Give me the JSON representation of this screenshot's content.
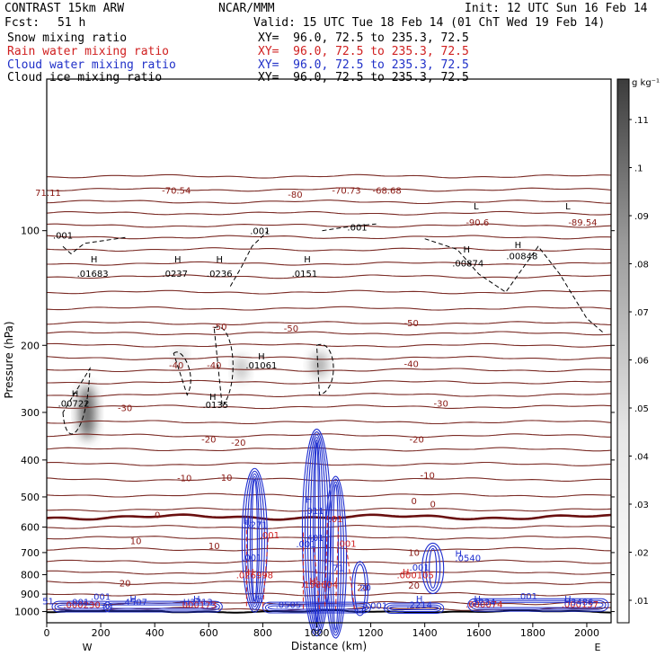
{
  "header": {
    "title_left": "CONTRAST 15km ARW",
    "title_center": "NCAR/MMM",
    "init": "Init: 12 UTC Sun 16 Feb 14",
    "fcst_label": "Fcst:",
    "fcst_value": "51 h",
    "valid": "Valid: 15 UTC Tue 18 Feb 14 (01 ChT Wed 19 Feb 14)"
  },
  "fields": [
    {
      "name": "Snow mixing ratio",
      "xy": "XY=  96.0, 72.5 to 235.3, 72.5",
      "color": "#000000"
    },
    {
      "name": "Rain water mixing ratio",
      "xy": "XY=  96.0, 72.5 to 235.3, 72.5",
      "color": "#d02020"
    },
    {
      "name": "Cloud water mixing ratio",
      "xy": "XY=  96.0, 72.5 to 235.3, 72.5",
      "color": "#2030c8"
    },
    {
      "name": "Cloud ice mixing ratio",
      "xy": "XY=  96.0, 72.5 to 235.3, 72.5",
      "color": "#000000"
    }
  ],
  "chart_data": {
    "type": "contour",
    "xlabel": "Distance (km)",
    "ylabel": "Pressure (hPa)",
    "xlim": [
      0,
      2090
    ],
    "ylim": [
      1070,
      40
    ],
    "y_scale": "log",
    "xticks": [
      0,
      200,
      400,
      600,
      800,
      1000,
      1200,
      1400,
      1600,
      1800,
      2000
    ],
    "yticks": [
      100,
      200,
      300,
      400,
      500,
      600,
      700,
      800,
      900,
      1000
    ],
    "x_end_labels": {
      "left": "W",
      "right": "E"
    },
    "colorbar": {
      "unit": "g kg⁻¹",
      "labels": [
        ".01",
        ".02",
        ".03",
        ".04",
        ".05",
        ".06",
        ".07",
        ".08",
        ".09",
        ".1",
        ".11"
      ]
    },
    "temperature_contours": [
      -80,
      -70,
      -60,
      -50,
      -40,
      -30,
      -20,
      -10,
      0,
      10,
      20
    ],
    "temperature_labels": [
      {
        "text": "-70.54",
        "x": 480,
        "p": 80
      },
      {
        "text": "-80",
        "x": 920,
        "p": 82
      },
      {
        "text": "-70.73",
        "x": 1110,
        "p": 80
      },
      {
        "text": "-68.68",
        "x": 1260,
        "p": 80
      },
      {
        "text": "-89.54",
        "x": 1985,
        "p": 97
      },
      {
        "text": "-90.6",
        "x": 1595,
        "p": 97
      },
      {
        "text": "71.11",
        "x": 5,
        "p": 81
      },
      {
        "text": "-50",
        "x": 640,
        "p": 182
      },
      {
        "text": "-50",
        "x": 905,
        "p": 184
      },
      {
        "text": "-50",
        "x": 1350,
        "p": 178
      },
      {
        "text": "-40",
        "x": 480,
        "p": 230
      },
      {
        "text": "-40",
        "x": 620,
        "p": 230
      },
      {
        "text": "-40",
        "x": 1350,
        "p": 228
      },
      {
        "text": "-30",
        "x": 290,
        "p": 298
      },
      {
        "text": "-30",
        "x": 1460,
        "p": 290
      },
      {
        "text": "-20",
        "x": 600,
        "p": 360
      },
      {
        "text": "-20",
        "x": 710,
        "p": 367
      },
      {
        "text": "-20",
        "x": 1370,
        "p": 360
      },
      {
        "text": "-10",
        "x": 510,
        "p": 455
      },
      {
        "text": "-10",
        "x": 660,
        "p": 453
      },
      {
        "text": "-10",
        "x": 1410,
        "p": 448
      },
      {
        "text": "0",
        "x": 410,
        "p": 568
      },
      {
        "text": "0",
        "x": 1360,
        "p": 522
      },
      {
        "text": "0",
        "x": 1430,
        "p": 532
      },
      {
        "text": "10",
        "x": 330,
        "p": 666
      },
      {
        "text": "10",
        "x": 620,
        "p": 686
      },
      {
        "text": "10",
        "x": 1360,
        "p": 714
      },
      {
        "text": "20",
        "x": 290,
        "p": 858
      },
      {
        "text": "20",
        "x": 1170,
        "p": 882
      },
      {
        "text": "20",
        "x": 1360,
        "p": 870
      }
    ],
    "snow_ice_labels": [
      {
        "text": ".001",
        "x": 60,
        "p": 105
      },
      {
        "text": "H",
        "x": 175,
        "p": 121
      },
      {
        "text": ".01683",
        "x": 170,
        "p": 132
      },
      {
        "text": "H",
        "x": 485,
        "p": 121
      },
      {
        "text": ".0237",
        "x": 475,
        "p": 132
      },
      {
        "text": "H",
        "x": 640,
        "p": 121
      },
      {
        "text": ".0236",
        "x": 640,
        "p": 132
      },
      {
        "text": ".001",
        "x": 790,
        "p": 102
      },
      {
        "text": "H",
        "x": 965,
        "p": 121
      },
      {
        "text": ".0151",
        "x": 955,
        "p": 132
      },
      {
        "text": ".001",
        "x": 1150,
        "p": 100
      },
      {
        "text": "H",
        "x": 1555,
        "p": 114
      },
      {
        "text": ".00874",
        "x": 1560,
        "p": 124
      },
      {
        "text": "H",
        "x": 1745,
        "p": 111
      },
      {
        "text": ".00848",
        "x": 1760,
        "p": 119
      },
      {
        "text": "H",
        "x": 795,
        "p": 218
      },
      {
        "text": ".01061",
        "x": 795,
        "p": 230
      },
      {
        "text": "H",
        "x": 105,
        "p": 273
      },
      {
        "text": ".00722",
        "x": 100,
        "p": 290
      },
      {
        "text": "H",
        "x": 615,
        "p": 278
      },
      {
        "text": ".0135",
        "x": 625,
        "p": 292
      },
      {
        "text": "L",
        "x": 1590,
        "p": 88
      },
      {
        "text": "L",
        "x": 1930,
        "p": 88
      }
    ],
    "rain_labels": [
      {
        "text": ".001",
        "x": 825,
        "p": 642
      },
      {
        "text": ".001",
        "x": 1110,
        "p": 677
      },
      {
        "text": ".01",
        "x": 1070,
        "p": 582
      },
      {
        "text": "H",
        "x": 755,
        "p": 803
      },
      {
        "text": ".026998",
        "x": 770,
        "p": 818
      },
      {
        "text": "H",
        "x": 985,
        "p": 848
      },
      {
        "text": ".198604",
        "x": 1010,
        "p": 865
      },
      {
        "text": "H",
        "x": 1330,
        "p": 803
      },
      {
        "text": ".000105",
        "x": 1365,
        "p": 818
      },
      {
        "text": ".000230",
        "x": 130,
        "p": 977
      },
      {
        "text": ".000173",
        "x": 560,
        "p": 978
      },
      {
        "text": ".000074",
        "x": 1620,
        "p": 975
      },
      {
        "text": ".000157",
        "x": 1975,
        "p": 976
      }
    ],
    "cloud_water_labels": [
      {
        "text": ".001",
        "x": 200,
        "p": 931
      },
      {
        "text": "H",
        "x": 320,
        "p": 945
      },
      {
        "text": ".4507",
        "x": 325,
        "p": 962
      },
      {
        "text": ".001",
        "x": 120,
        "p": 962
      },
      {
        "text": "H",
        "x": 555,
        "p": 945
      },
      {
        "text": "H3713",
        "x": 560,
        "p": 962
      },
      {
        "text": "H",
        "x": 790,
        "p": 945
      },
      {
        "text": ".0505",
        "x": 895,
        "p": 977
      },
      {
        "text": "H",
        "x": 1380,
        "p": 945
      },
      {
        "text": ".2214",
        "x": 1380,
        "p": 977
      },
      {
        "text": ".001",
        "x": 1225,
        "p": 983
      },
      {
        "text": ".001",
        "x": 1780,
        "p": 928
      },
      {
        "text": "H",
        "x": 1595,
        "p": 945
      },
      {
        "text": "3234",
        "x": 1620,
        "p": 962
      },
      {
        "text": "H",
        "x": 1930,
        "p": 945
      },
      {
        "text": "H3486",
        "x": 1970,
        "p": 962
      },
      {
        "text": "H",
        "x": 740,
        "p": 589
      },
      {
        "text": ".5271",
        "x": 770,
        "p": 604
      },
      {
        "text": ".001",
        "x": 760,
        "p": 735
      },
      {
        "text": "H",
        "x": 970,
        "p": 518
      },
      {
        "text": ".011",
        "x": 990,
        "p": 555
      },
      {
        "text": ".401",
        "x": 990,
        "p": 653
      },
      {
        "text": ".001",
        "x": 960,
        "p": 678
      },
      {
        "text": "71",
        "x": 1080,
        "p": 782
      },
      {
        "text": "H",
        "x": 1525,
        "p": 718
      },
      {
        "text": ".0540",
        "x": 1560,
        "p": 738
      },
      {
        "text": ".001",
        "x": 1380,
        "p": 780
      },
      {
        "text": "51",
        "x": 5,
        "p": 958
      },
      {
        "text": "20",
        "x": 1180,
        "p": 882
      }
    ]
  }
}
